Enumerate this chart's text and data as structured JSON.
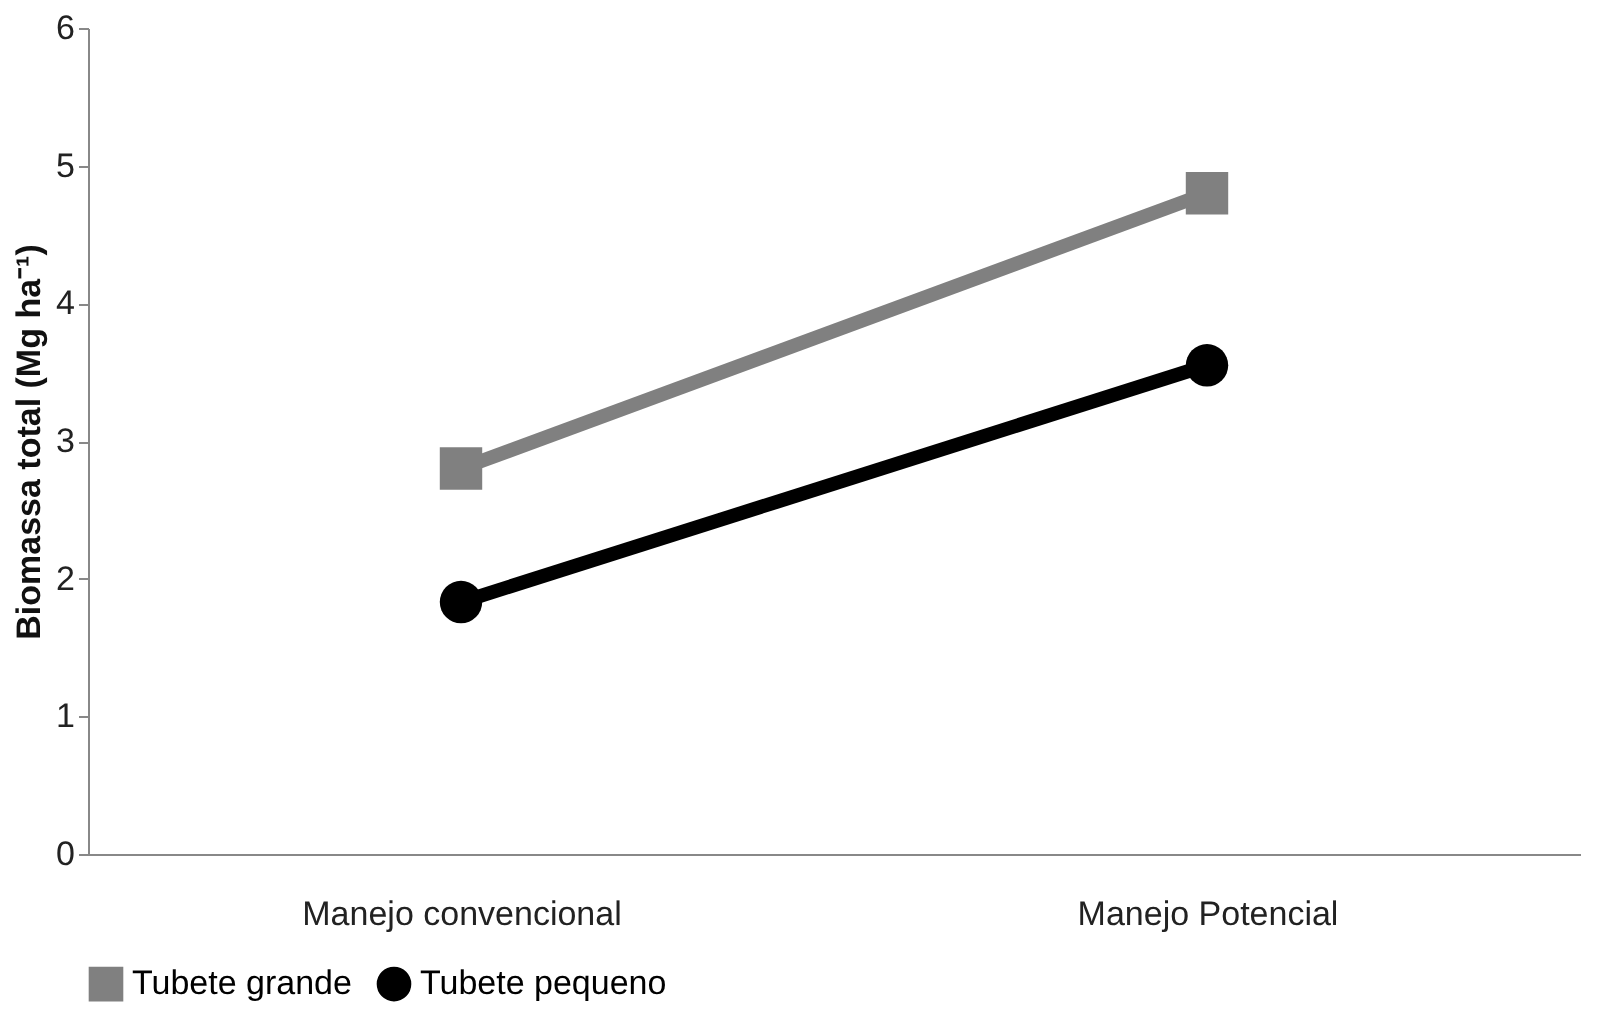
{
  "chart_data": {
    "type": "line",
    "ylabel": "Biomassa total (Mg ha⁻¹)",
    "categories": [
      "Manejo convencional",
      "Manejo Potencial"
    ],
    "series": [
      {
        "name": "Tubete grande",
        "color": "#808080",
        "marker": "square",
        "values": [
          2.8,
          4.8
        ]
      },
      {
        "name": "Tubete pequeno",
        "color": "#000000",
        "marker": "circle",
        "values": [
          1.83,
          3.55
        ]
      }
    ],
    "ylim": [
      0,
      6
    ],
    "yticks": [
      0,
      1,
      2,
      3,
      4,
      5,
      6
    ],
    "grid": false,
    "legend": "bottom"
  }
}
